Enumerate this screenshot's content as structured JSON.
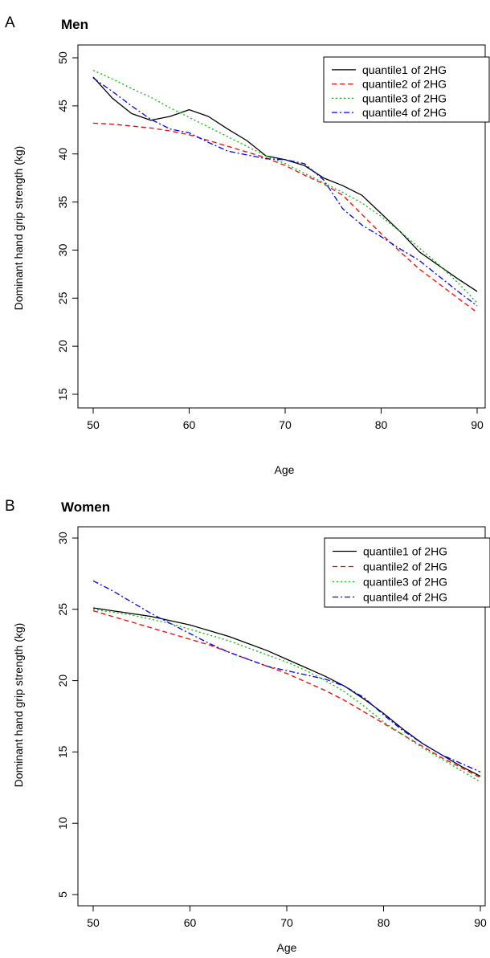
{
  "panels": [
    {
      "letter": "A",
      "title": "Men",
      "ylabel": "Dominant  hand grip strength (kg)",
      "xlabel": "Age",
      "legend": [
        "quantile1 of 2HG",
        "quantile2 of 2HG",
        "quantile3 of 2HG",
        "quantile4 of 2HG"
      ]
    },
    {
      "letter": "B",
      "title": "Women",
      "ylabel": "Dominant  hand grip strength (kg)",
      "xlabel": "Age",
      "legend": [
        "quantile1 of 2HG",
        "quantile2 of 2HG",
        "quantile3 of 2HG",
        "quantile4 of 2HG"
      ]
    }
  ],
  "chart_data": [
    {
      "type": "line",
      "title": "Men",
      "xlabel": "Age",
      "ylabel": "Dominant  hand grip strength (kg)",
      "xlim": [
        50,
        90
      ],
      "ylim": [
        15,
        50
      ],
      "xticks": [
        50,
        60,
        70,
        80,
        90
      ],
      "yticks": [
        15,
        20,
        25,
        30,
        35,
        40,
        45,
        50
      ],
      "legend_position": "top-right",
      "grid": false,
      "x": [
        50,
        52,
        54,
        56,
        58,
        60,
        62,
        64,
        66,
        68,
        70,
        72,
        74,
        76,
        78,
        80,
        82,
        84,
        86,
        88,
        90
      ],
      "series": [
        {
          "name": "quantile1 of 2HG",
          "color": "#000000",
          "dash": "solid",
          "values": [
            48.0,
            45.8,
            44.2,
            43.5,
            43.9,
            44.6,
            43.9,
            42.6,
            41.4,
            39.8,
            39.4,
            38.8,
            37.5,
            36.7,
            35.7,
            33.8,
            31.9,
            29.8,
            28.4,
            27.0,
            25.7
          ]
        },
        {
          "name": "quantile2 of 2HG",
          "color": "#ff0000",
          "dash": "dashed",
          "values": [
            43.2,
            43.1,
            42.9,
            42.7,
            42.4,
            42.0,
            41.4,
            40.8,
            40.2,
            39.6,
            38.8,
            37.8,
            36.9,
            35.7,
            33.7,
            31.7,
            29.8,
            28.0,
            26.5,
            25.0,
            23.5
          ]
        },
        {
          "name": "quantile3 of 2HG",
          "color": "#00bb00",
          "dash": "dotted",
          "values": [
            48.7,
            47.8,
            46.8,
            45.9,
            44.8,
            43.8,
            42.8,
            41.8,
            40.8,
            39.8,
            39.0,
            38.0,
            37.0,
            36.0,
            34.9,
            33.5,
            31.9,
            30.2,
            28.5,
            26.6,
            24.5
          ]
        },
        {
          "name": "quantile4 of 2HG",
          "color": "#0000ff",
          "dash": "dotdash",
          "values": [
            47.9,
            46.5,
            45.0,
            43.6,
            42.6,
            42.2,
            41.2,
            40.3,
            39.9,
            39.5,
            39.4,
            39.0,
            37.3,
            34.3,
            32.6,
            31.4,
            30.1,
            28.9,
            27.3,
            25.7,
            24.2
          ]
        }
      ]
    },
    {
      "type": "line",
      "title": "Women",
      "xlabel": "Age",
      "ylabel": "Dominant  hand grip strength (kg)",
      "xlim": [
        50,
        90
      ],
      "ylim": [
        5,
        30
      ],
      "xticks": [
        50,
        60,
        70,
        80,
        90
      ],
      "yticks": [
        5,
        10,
        15,
        20,
        25,
        30
      ],
      "legend_position": "top-right",
      "grid": false,
      "x": [
        50,
        52,
        54,
        56,
        58,
        60,
        62,
        64,
        66,
        68,
        70,
        72,
        74,
        76,
        78,
        80,
        82,
        84,
        86,
        88,
        90
      ],
      "series": [
        {
          "name": "quantile1 of 2HG",
          "color": "#000000",
          "dash": "solid",
          "values": [
            25.1,
            24.9,
            24.7,
            24.5,
            24.2,
            23.9,
            23.5,
            23.1,
            22.6,
            22.1,
            21.5,
            20.9,
            20.3,
            19.6,
            18.7,
            17.7,
            16.6,
            15.6,
            14.8,
            14.0,
            13.3
          ]
        },
        {
          "name": "quantile2 of 2HG",
          "color": "#ff0000",
          "dash": "dashed",
          "values": [
            24.9,
            24.5,
            24.1,
            23.7,
            23.3,
            22.9,
            22.5,
            22.0,
            21.5,
            21.0,
            20.5,
            19.9,
            19.3,
            18.6,
            17.8,
            17.0,
            16.2,
            15.4,
            14.6,
            13.9,
            13.2
          ]
        },
        {
          "name": "quantile3 of 2HG",
          "color": "#00bb00",
          "dash": "dotted",
          "values": [
            25.0,
            24.8,
            24.6,
            24.3,
            24.0,
            23.6,
            23.2,
            22.8,
            22.3,
            21.8,
            21.3,
            20.7,
            20.0,
            19.2,
            18.2,
            17.1,
            16.2,
            15.3,
            14.5,
            13.7,
            12.9
          ]
        },
        {
          "name": "quantile4 of 2HG",
          "color": "#0000ff",
          "dash": "dotdash",
          "values": [
            27.0,
            26.3,
            25.5,
            24.7,
            24.0,
            23.3,
            22.6,
            22.0,
            21.5,
            21.0,
            20.7,
            20.4,
            20.1,
            19.6,
            18.8,
            17.6,
            16.5,
            15.6,
            14.8,
            14.2,
            13.6
          ]
        }
      ]
    }
  ]
}
